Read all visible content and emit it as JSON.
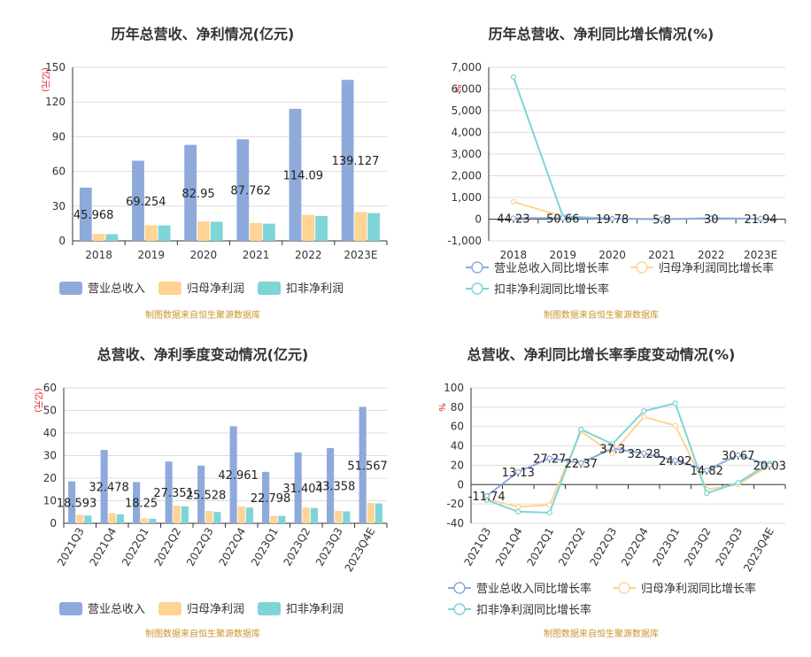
{
  "colors": {
    "revenue": "#8eaadb",
    "net_profit": "#ffd494",
    "deducted_profit": "#7fd4d8",
    "source": "#c8962d",
    "unit": "#e02020"
  },
  "legend": {
    "bar": [
      "营业总收入",
      "归母净利润",
      "扣非净利润"
    ],
    "line": [
      "营业总收入同比增长率",
      "归母净利润同比增长率",
      "扣非净利润同比增长率"
    ]
  },
  "source_note": "制图数据来自恒生聚源数据库",
  "chart_data": [
    {
      "type": "bar",
      "title": "历年总营收、净利情况(亿元)",
      "ylabel": "(亿元)",
      "ylim": [
        0,
        150
      ],
      "yticks": [
        0,
        30,
        60,
        90,
        120,
        150
      ],
      "categories": [
        "2018",
        "2019",
        "2020",
        "2021",
        "2022",
        "2023E"
      ],
      "series": [
        {
          "name": "营业总收入",
          "values": [
            45.968,
            69.254,
            82.95,
            87.762,
            114.09,
            139.127
          ]
        },
        {
          "name": "归母净利润",
          "values": [
            6.0,
            13.5,
            16.8,
            15.5,
            22.5,
            25.0
          ]
        },
        {
          "name": "扣非净利润",
          "values": [
            5.8,
            13.3,
            16.5,
            14.8,
            21.5,
            24.0
          ]
        }
      ],
      "data_labels": [
        "45.968",
        "69.254",
        "82.95",
        "87.762",
        "114.09",
        "139.127"
      ]
    },
    {
      "type": "line",
      "title": "历年总营收、净利同比增长情况(%)",
      "ylabel": "%",
      "ylim": [
        -1000,
        7000
      ],
      "yticks": [
        -1000,
        0,
        1000,
        2000,
        3000,
        4000,
        5000,
        6000,
        7000
      ],
      "ytick_labels": [
        "-1,000",
        "0",
        "1,000",
        "2,000",
        "3,000",
        "4,000",
        "5,000",
        "6,000",
        "7,000"
      ],
      "categories": [
        "2018",
        "2019",
        "2020",
        "2021",
        "2022",
        "2023E"
      ],
      "series": [
        {
          "name": "营业总收入同比增长率",
          "values": [
            44.23,
            50.66,
            19.78,
            5.8,
            30,
            21.94
          ]
        },
        {
          "name": "归母净利润同比增长率",
          "values": [
            800,
            120,
            25,
            -10,
            45,
            12
          ]
        },
        {
          "name": "扣非净利润同比增长率",
          "values": [
            6550,
            130,
            25,
            -12,
            45,
            12
          ]
        }
      ],
      "data_labels": [
        "44.23",
        "50.66",
        "19.78",
        "5.8",
        "30",
        "21.94"
      ]
    },
    {
      "type": "bar",
      "title": "总营收、净利季度变动情况(亿元)",
      "ylabel": "(亿元)",
      "ylim": [
        0,
        60
      ],
      "yticks": [
        0,
        10,
        20,
        30,
        40,
        50,
        60
      ],
      "categories": [
        "2021Q3",
        "2021Q4",
        "2022Q1",
        "2022Q2",
        "2022Q3",
        "2022Q4",
        "2023Q1",
        "2023Q2",
        "2023Q3",
        "2023Q4E"
      ],
      "series": [
        {
          "name": "营业总收入",
          "values": [
            18.593,
            32.478,
            18.25,
            27.351,
            25.528,
            42.961,
            22.798,
            31.404,
            33.358,
            51.567
          ]
        },
        {
          "name": "归母净利润",
          "values": [
            3.8,
            4.5,
            2.2,
            7.8,
            5.5,
            7.5,
            3.3,
            7.0,
            5.5,
            9.0
          ]
        },
        {
          "name": "扣非净利润",
          "values": [
            3.4,
            4.0,
            2.0,
            7.5,
            5.0,
            7.0,
            3.3,
            6.8,
            5.3,
            8.8
          ]
        }
      ],
      "data_labels": [
        "18.593",
        "32.478",
        "18.25",
        "27.351",
        "25.528",
        "42.961",
        "22.798",
        "31.404",
        "33.358",
        "51.567"
      ]
    },
    {
      "type": "line",
      "title": "总营收、净利同比增长率季度变动情况(%)",
      "ylabel": "%",
      "ylim": [
        -40,
        100
      ],
      "yticks": [
        -40,
        -20,
        0,
        20,
        40,
        60,
        80,
        100
      ],
      "categories": [
        "2021Q3",
        "2021Q4",
        "2022Q1",
        "2022Q2",
        "2022Q3",
        "2022Q4",
        "2023Q1",
        "2023Q2",
        "2023Q3",
        "2023Q4E"
      ],
      "series": [
        {
          "name": "营业总收入同比增长率",
          "values": [
            -11.74,
            13.13,
            27.27,
            22.37,
            37.3,
            32.28,
            24.92,
            14.82,
            30.67,
            20.03
          ]
        },
        {
          "name": "归母净利润同比增长率",
          "values": [
            -15,
            -23,
            -21,
            55,
            32,
            70,
            61,
            -5,
            0,
            20
          ]
        },
        {
          "name": "扣非净利润同比增长率",
          "values": [
            -16,
            -28,
            -29,
            57,
            42,
            76,
            84,
            -9,
            2,
            22
          ]
        }
      ],
      "data_labels": [
        "-11.74",
        "13.13",
        "27.27",
        "22.37",
        "37.3",
        "32.28",
        "24.92",
        "14.82",
        "30.67",
        "20.03"
      ]
    }
  ]
}
